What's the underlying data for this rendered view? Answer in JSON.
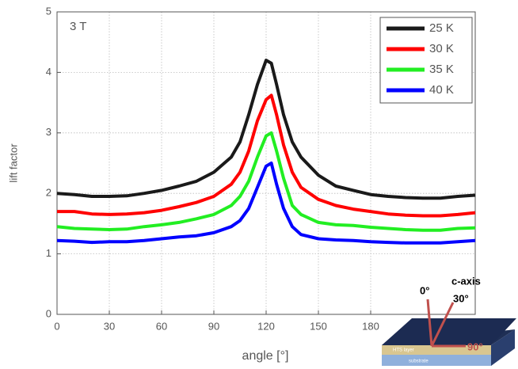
{
  "chart_data": {
    "type": "line",
    "annotation": "3 T",
    "x_label": "angle [°]",
    "y_label": "lift factor",
    "x": [
      0,
      10,
      20,
      30,
      40,
      50,
      60,
      70,
      80,
      90,
      100,
      105,
      110,
      115,
      120,
      123,
      126,
      130,
      135,
      140,
      150,
      160,
      170,
      180,
      190,
      200,
      210,
      220,
      230,
      240
    ],
    "series": [
      {
        "name": "25 K",
        "color": "#1a1a1a",
        "values": [
          2.0,
          1.98,
          1.95,
          1.95,
          1.96,
          2.0,
          2.05,
          2.12,
          2.2,
          2.35,
          2.6,
          2.85,
          3.3,
          3.8,
          4.2,
          4.15,
          3.8,
          3.3,
          2.85,
          2.6,
          2.3,
          2.12,
          2.05,
          1.98,
          1.95,
          1.93,
          1.92,
          1.92,
          1.95,
          1.97
        ]
      },
      {
        "name": "30 K",
        "color": "#ff0000",
        "values": [
          1.7,
          1.7,
          1.66,
          1.65,
          1.66,
          1.68,
          1.72,
          1.78,
          1.85,
          1.95,
          2.15,
          2.35,
          2.7,
          3.2,
          3.55,
          3.62,
          3.3,
          2.8,
          2.35,
          2.1,
          1.9,
          1.8,
          1.74,
          1.7,
          1.66,
          1.64,
          1.63,
          1.63,
          1.65,
          1.68
        ]
      },
      {
        "name": "35 K",
        "color": "#22ee22",
        "values": [
          1.45,
          1.42,
          1.41,
          1.4,
          1.41,
          1.45,
          1.48,
          1.52,
          1.58,
          1.65,
          1.8,
          1.95,
          2.2,
          2.6,
          2.95,
          3.0,
          2.7,
          2.25,
          1.8,
          1.65,
          1.52,
          1.48,
          1.47,
          1.44,
          1.42,
          1.4,
          1.39,
          1.39,
          1.42,
          1.43
        ]
      },
      {
        "name": "40 K",
        "color": "#0000ff",
        "values": [
          1.22,
          1.21,
          1.19,
          1.2,
          1.2,
          1.22,
          1.25,
          1.28,
          1.3,
          1.35,
          1.45,
          1.55,
          1.75,
          2.1,
          2.45,
          2.5,
          2.15,
          1.75,
          1.45,
          1.32,
          1.25,
          1.23,
          1.22,
          1.2,
          1.19,
          1.18,
          1.18,
          1.18,
          1.2,
          1.22
        ]
      }
    ],
    "xlim": [
      0,
      240
    ],
    "xticks": [
      0,
      30,
      60,
      90,
      120,
      150,
      180
    ],
    "ylim": [
      0,
      5
    ],
    "yticks": [
      0,
      1,
      2,
      3,
      4,
      5
    ],
    "grid": true,
    "legend": "upper right"
  },
  "inset": {
    "c0": "0°",
    "caxis": "c-axis",
    "c30": "30°",
    "c90": "90°",
    "layer": "HTS layer",
    "substrate": "substrate"
  }
}
